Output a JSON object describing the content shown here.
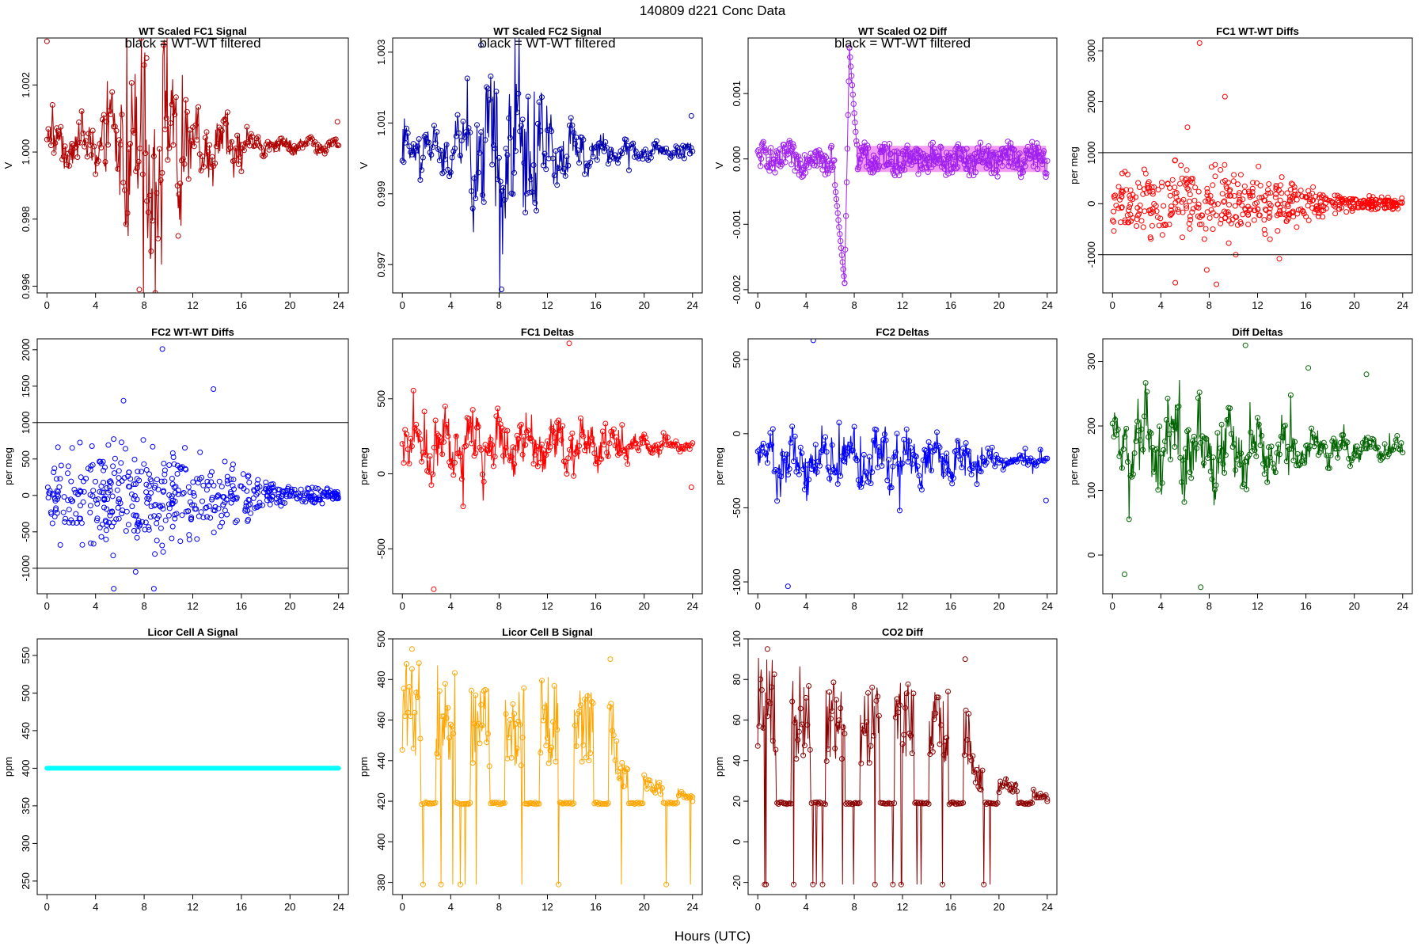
{
  "page": {
    "title": "140809    d221    Conc Data",
    "xlabel": "Hours (UTC)"
  },
  "chart_data": [
    {
      "id": "p1",
      "type": "line",
      "title": "WT Scaled FC1 Signal",
      "subtitle": "black = WT-WT filtered",
      "ylabel": "V",
      "ylim": [
        0.9958,
        1.0034
      ],
      "yticks": [
        0.996,
        0.998,
        1.0,
        1.002
      ],
      "yticklabels": [
        "0.996",
        "0.998",
        "1.000",
        "1.002"
      ],
      "xlim": [
        -0.8,
        24.8
      ],
      "xticks": [
        0,
        4,
        8,
        12,
        16,
        20,
        24
      ],
      "color": "#b00000",
      "hlines": [],
      "series": {
        "style": "line",
        "base": 1.0002,
        "amp": 0.0009,
        "env": [
          [
            0,
            0.0009
          ],
          [
            4,
            0.0012
          ],
          [
            6,
            0.0025
          ],
          [
            7.6,
            0.0045
          ],
          [
            10.5,
            0.0035
          ],
          [
            13,
            0.0015
          ],
          [
            16,
            0.0012
          ],
          [
            17,
            0.0004
          ],
          [
            24,
            0.0003
          ]
        ],
        "end": 1.0008
      },
      "points": [
        [
          0,
          1.0033
        ],
        [
          7.6,
          0.9959
        ],
        [
          8.2,
          1.0028
        ],
        [
          10.8,
          0.9975
        ],
        [
          23.9,
          1.0009
        ]
      ]
    },
    {
      "id": "p2",
      "type": "line",
      "title": "WT Scaled FC2 Signal",
      "subtitle": "black = WT-WT filtered",
      "ylabel": "V",
      "ylim": [
        0.9962,
        1.0034
      ],
      "yticks": [
        0.997,
        0.999,
        1.001,
        1.003
      ],
      "yticklabels": [
        "0.997",
        "0.999",
        "1.001",
        "1.003"
      ],
      "xlim": [
        -0.8,
        24.8
      ],
      "xticks": [
        0,
        4,
        8,
        12,
        16,
        20,
        24
      ],
      "color": "#0000b0",
      "hlines": [],
      "series": {
        "style": "line",
        "base": 1.0002,
        "amp": 0.0008,
        "env": [
          [
            0,
            0.0008
          ],
          [
            4,
            0.001
          ],
          [
            6,
            0.0022
          ],
          [
            8.2,
            0.004
          ],
          [
            11,
            0.003
          ],
          [
            13,
            0.0012
          ],
          [
            16,
            0.0008
          ],
          [
            17,
            0.0004
          ],
          [
            24,
            0.0003
          ]
        ],
        "end": 1.0008
      },
      "points": [
        [
          6.5,
          1.0032
        ],
        [
          8.2,
          0.9963
        ],
        [
          23.9,
          1.0012
        ]
      ]
    },
    {
      "id": "p3",
      "type": "line",
      "title": "WT Scaled O2 Diff",
      "subtitle": "black = WT-WT filtered",
      "ylabel": "V",
      "ylim": [
        -0.00205,
        0.00185
      ],
      "yticks": [
        -0.002,
        -0.001,
        0.0,
        0.001
      ],
      "yticklabels": [
        "-0.002",
        "-0.001",
        "0.000",
        "0.001"
      ],
      "xlim": [
        -0.8,
        24.8
      ],
      "xticks": [
        0,
        4,
        8,
        12,
        16,
        20,
        24
      ],
      "color": "#a020f0",
      "hlines": [],
      "series": {
        "style": "band",
        "base": 0.0,
        "half": 0.0002,
        "spike": [
          [
            6.4,
            -0.0004
          ],
          [
            7.2,
            -0.0019
          ],
          [
            7.6,
            0.0017
          ],
          [
            8.2,
            0.0002
          ]
        ]
      },
      "points": [
        [
          7.2,
          -0.0019
        ],
        [
          7.6,
          0.0017
        ]
      ]
    },
    {
      "id": "p4",
      "type": "scatter",
      "title": "FC1 WT-WT Diffs",
      "subtitle": "",
      "ylabel": "per meg",
      "ylim": [
        -1750,
        3250
      ],
      "yticks": [
        -1000,
        0,
        1000,
        2000,
        3000
      ],
      "yticklabels": [
        "-1000",
        "0",
        "1000",
        "2000",
        "3000"
      ],
      "xlim": [
        -0.8,
        24.8
      ],
      "xticks": [
        0,
        4,
        8,
        12,
        16,
        20,
        24
      ],
      "color": "#ff0000",
      "hlines": [
        1000,
        -1000
      ],
      "series": {
        "style": "scatter",
        "base": 0,
        "env": [
          [
            0,
            450
          ],
          [
            6,
            650
          ],
          [
            12,
            550
          ],
          [
            16,
            350
          ],
          [
            18,
            150
          ],
          [
            24,
            80
          ]
        ]
      },
      "points": [
        [
          7.2,
          3150
        ],
        [
          9.3,
          2100
        ],
        [
          6.2,
          1500
        ],
        [
          7.8,
          -1300
        ],
        [
          5.2,
          -1550
        ],
        [
          8.6,
          -1580
        ],
        [
          10.2,
          -1000
        ],
        [
          13.8,
          -1080
        ]
      ]
    },
    {
      "id": "p5",
      "type": "scatter",
      "title": "FC2 WT-WT Diffs",
      "subtitle": "",
      "ylabel": "per meg",
      "ylim": [
        -1350,
        2150
      ],
      "yticks": [
        -1000,
        -500,
        0,
        500,
        1000,
        1500,
        2000
      ],
      "yticklabels": [
        "-1000",
        "-500",
        "0",
        "500",
        "1000",
        "1500",
        "2000"
      ],
      "xlim": [
        -0.8,
        24.8
      ],
      "xticks": [
        0,
        4,
        8,
        12,
        16,
        20,
        24
      ],
      "color": "#0000ff",
      "hlines": [
        1000,
        -1000
      ],
      "series": {
        "style": "scatter",
        "base": 0,
        "env": [
          [
            0,
            450
          ],
          [
            6,
            650
          ],
          [
            12,
            500
          ],
          [
            16,
            300
          ],
          [
            18,
            150
          ],
          [
            24,
            60
          ]
        ]
      },
      "points": [
        [
          9.5,
          2010
        ],
        [
          13.7,
          1460
        ],
        [
          6.3,
          1300
        ],
        [
          5.5,
          -1280
        ],
        [
          8.8,
          -1280
        ],
        [
          7.3,
          -1050
        ]
      ]
    },
    {
      "id": "p6",
      "type": "line",
      "title": "FC1 Deltas",
      "subtitle": "",
      "ylabel": "per meg",
      "ylim": [
        -800,
        900
      ],
      "yticks": [
        -500,
        0,
        500
      ],
      "yticklabels": [
        "-500",
        "0",
        "500"
      ],
      "xlim": [
        -0.8,
        24.8
      ],
      "xticks": [
        0,
        4,
        8,
        12,
        16,
        20,
        24
      ],
      "color": "#ff0000",
      "hlines": [],
      "series": {
        "style": "line",
        "base": 190,
        "amp": 120,
        "env": [
          [
            0,
            220
          ],
          [
            3,
            320
          ],
          [
            6,
            280
          ],
          [
            12,
            260
          ],
          [
            16,
            220
          ],
          [
            20,
            90
          ],
          [
            24,
            50
          ]
        ],
        "end": 190
      },
      "points": [
        [
          2.6,
          -770
        ],
        [
          13.8,
          870
        ],
        [
          23.9,
          -90
        ]
      ]
    },
    {
      "id": "p7",
      "type": "line",
      "title": "FC2 Deltas",
      "subtitle": "",
      "ylabel": "per meg",
      "ylim": [
        -1080,
        640
      ],
      "yticks": [
        -1000,
        -500,
        0,
        500
      ],
      "yticklabels": [
        "-1000",
        "-500",
        "0",
        "500"
      ],
      "xlim": [
        -0.8,
        24.8
      ],
      "xticks": [
        0,
        4,
        8,
        12,
        16,
        20,
        24
      ],
      "color": "#0000ff",
      "hlines": [],
      "series": {
        "style": "line",
        "base": -180,
        "amp": 110,
        "env": [
          [
            0,
            200
          ],
          [
            3,
            300
          ],
          [
            6,
            280
          ],
          [
            12,
            260
          ],
          [
            16,
            200
          ],
          [
            20,
            80
          ],
          [
            24,
            40
          ]
        ],
        "end": -185
      },
      "points": [
        [
          2.5,
          -1030
        ],
        [
          4.6,
          630
        ],
        [
          23.9,
          -450
        ]
      ]
    },
    {
      "id": "p8",
      "type": "line",
      "title": "Diff Deltas",
      "subtitle": "",
      "ylabel": "per meg",
      "ylim": [
        -60,
        335
      ],
      "yticks": [
        0,
        100,
        200,
        300
      ],
      "yticklabels": [
        "0",
        "100",
        "200",
        "300"
      ],
      "xlim": [
        -0.8,
        24.8
      ],
      "xticks": [
        0,
        4,
        8,
        12,
        16,
        20,
        24
      ],
      "color": "#006400",
      "hlines": [],
      "series": {
        "style": "line",
        "base": 165,
        "amp": 45,
        "env": [
          [
            0,
            60
          ],
          [
            3,
            110
          ],
          [
            8,
            90
          ],
          [
            13,
            70
          ],
          [
            17,
            35
          ],
          [
            24,
            20
          ]
        ],
        "end": 185
      },
      "points": [
        [
          11,
          325
        ],
        [
          7.3,
          -50
        ],
        [
          1,
          -30
        ],
        [
          16.2,
          290
        ],
        [
          21,
          280
        ]
      ]
    },
    {
      "id": "p9",
      "type": "line",
      "title": "Licor Cell A Signal",
      "subtitle": "",
      "ylabel": "ppm",
      "ylim": [
        232,
        572
      ],
      "yticks": [
        250,
        300,
        350,
        400,
        450,
        500,
        550
      ],
      "yticklabels": [
        "250",
        "300",
        "350",
        "400",
        "450",
        "500",
        "550"
      ],
      "xlim": [
        -0.8,
        24.8
      ],
      "xticks": [
        0,
        4,
        8,
        12,
        16,
        20,
        24
      ],
      "color": "#00ffff",
      "hlines": [],
      "series": {
        "style": "flat",
        "base": 400
      },
      "points": []
    },
    {
      "id": "p10",
      "type": "line",
      "title": "Licor Cell B Signal",
      "subtitle": "",
      "ylabel": "ppm",
      "ylim": [
        374,
        500
      ],
      "yticks": [
        380,
        400,
        420,
        440,
        460,
        480,
        500
      ],
      "yticklabels": [
        "380",
        "400",
        "420",
        "440",
        "460",
        "480",
        "500"
      ],
      "xlim": [
        -0.8,
        24.8
      ],
      "xticks": [
        0,
        4,
        8,
        12,
        16,
        20,
        24
      ],
      "color": "#ffa500",
      "hlines": [],
      "series": {
        "style": "licor",
        "base": 420,
        "low": 379,
        "hi": [
          [
            0.8,
            495
          ],
          [
            4,
            485
          ],
          [
            8,
            475
          ],
          [
            12,
            483
          ],
          [
            14,
            470
          ],
          [
            17,
            490
          ],
          [
            18,
            440
          ],
          [
            24,
            423
          ]
        ]
      },
      "points": [
        [
          0.8,
          495
        ],
        [
          17.2,
          490
        ],
        [
          24,
          420
        ]
      ]
    },
    {
      "id": "p11",
      "type": "line",
      "title": "CO2 Diff",
      "subtitle": "",
      "ylabel": "ppm",
      "ylim": [
        -26,
        100
      ],
      "yticks": [
        -20,
        0,
        20,
        40,
        60,
        80,
        100
      ],
      "yticklabels": [
        "-20",
        "0",
        "20",
        "40",
        "60",
        "80",
        "100"
      ],
      "xlim": [
        -0.8,
        24.8
      ],
      "xticks": [
        0,
        4,
        8,
        12,
        16,
        20,
        24
      ],
      "color": "#8b0000",
      "hlines": [],
      "series": {
        "style": "licor",
        "base": 20,
        "low": -21,
        "hi": [
          [
            0.8,
            95
          ],
          [
            4,
            85
          ],
          [
            8,
            75
          ],
          [
            12,
            83
          ],
          [
            14,
            70
          ],
          [
            17,
            90
          ],
          [
            18,
            40
          ],
          [
            24,
            23
          ]
        ]
      },
      "points": [
        [
          0.8,
          95
        ],
        [
          17.2,
          90
        ],
        [
          24,
          20
        ]
      ]
    }
  ]
}
